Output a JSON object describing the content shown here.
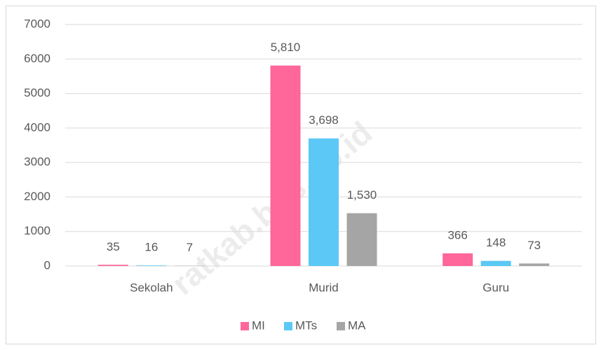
{
  "chart_data": {
    "type": "bar",
    "categories": [
      "Sekolah",
      "Murid",
      "Guru"
    ],
    "series": [
      {
        "name": "MI",
        "color": "#ff6699",
        "values": [
          35,
          5810,
          366
        ],
        "value_labels": [
          "35",
          "5,810",
          "366"
        ]
      },
      {
        "name": "MTs",
        "color": "#5bc8f5",
        "values": [
          16,
          3698,
          148
        ],
        "value_labels": [
          "16",
          "3,698",
          "148"
        ]
      },
      {
        "name": "MA",
        "color": "#a5a5a5",
        "values": [
          7,
          1530,
          73
        ],
        "value_labels": [
          "7",
          "1,530",
          "73"
        ]
      }
    ],
    "ylim": [
      0,
      7000
    ],
    "yticks": [
      0,
      1000,
      2000,
      3000,
      4000,
      5000,
      6000,
      7000
    ],
    "grid": true,
    "legend": "bottom",
    "watermark": "ratkab.bps.go.id"
  }
}
